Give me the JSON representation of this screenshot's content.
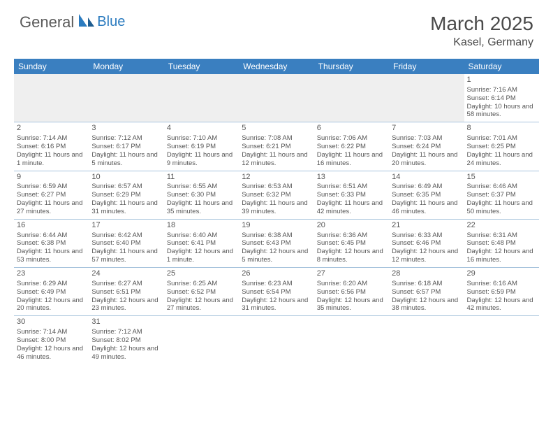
{
  "logo": {
    "text1": "General",
    "text2": "Blue"
  },
  "title": "March 2025",
  "location": "Kasel, Germany",
  "colors": {
    "header_bg": "#3a7fc0",
    "header_text": "#ffffff",
    "grid_line": "#a8c4dd",
    "blank_bg": "#efefef",
    "text": "#555555",
    "logo_gray": "#5a5a5a",
    "logo_blue": "#2b7bbf"
  },
  "dayHeaders": [
    "Sunday",
    "Monday",
    "Tuesday",
    "Wednesday",
    "Thursday",
    "Friday",
    "Saturday"
  ],
  "weeks": [
    [
      null,
      null,
      null,
      null,
      null,
      null,
      {
        "n": "1",
        "sr": "7:16 AM",
        "ss": "6:14 PM",
        "dl": "10 hours and 58 minutes."
      }
    ],
    [
      {
        "n": "2",
        "sr": "7:14 AM",
        "ss": "6:16 PM",
        "dl": "11 hours and 1 minute."
      },
      {
        "n": "3",
        "sr": "7:12 AM",
        "ss": "6:17 PM",
        "dl": "11 hours and 5 minutes."
      },
      {
        "n": "4",
        "sr": "7:10 AM",
        "ss": "6:19 PM",
        "dl": "11 hours and 9 minutes."
      },
      {
        "n": "5",
        "sr": "7:08 AM",
        "ss": "6:21 PM",
        "dl": "11 hours and 12 minutes."
      },
      {
        "n": "6",
        "sr": "7:06 AM",
        "ss": "6:22 PM",
        "dl": "11 hours and 16 minutes."
      },
      {
        "n": "7",
        "sr": "7:03 AM",
        "ss": "6:24 PM",
        "dl": "11 hours and 20 minutes."
      },
      {
        "n": "8",
        "sr": "7:01 AM",
        "ss": "6:25 PM",
        "dl": "11 hours and 24 minutes."
      }
    ],
    [
      {
        "n": "9",
        "sr": "6:59 AM",
        "ss": "6:27 PM",
        "dl": "11 hours and 27 minutes."
      },
      {
        "n": "10",
        "sr": "6:57 AM",
        "ss": "6:29 PM",
        "dl": "11 hours and 31 minutes."
      },
      {
        "n": "11",
        "sr": "6:55 AM",
        "ss": "6:30 PM",
        "dl": "11 hours and 35 minutes."
      },
      {
        "n": "12",
        "sr": "6:53 AM",
        "ss": "6:32 PM",
        "dl": "11 hours and 39 minutes."
      },
      {
        "n": "13",
        "sr": "6:51 AM",
        "ss": "6:33 PM",
        "dl": "11 hours and 42 minutes."
      },
      {
        "n": "14",
        "sr": "6:49 AM",
        "ss": "6:35 PM",
        "dl": "11 hours and 46 minutes."
      },
      {
        "n": "15",
        "sr": "6:46 AM",
        "ss": "6:37 PM",
        "dl": "11 hours and 50 minutes."
      }
    ],
    [
      {
        "n": "16",
        "sr": "6:44 AM",
        "ss": "6:38 PM",
        "dl": "11 hours and 53 minutes."
      },
      {
        "n": "17",
        "sr": "6:42 AM",
        "ss": "6:40 PM",
        "dl": "11 hours and 57 minutes."
      },
      {
        "n": "18",
        "sr": "6:40 AM",
        "ss": "6:41 PM",
        "dl": "12 hours and 1 minute."
      },
      {
        "n": "19",
        "sr": "6:38 AM",
        "ss": "6:43 PM",
        "dl": "12 hours and 5 minutes."
      },
      {
        "n": "20",
        "sr": "6:36 AM",
        "ss": "6:45 PM",
        "dl": "12 hours and 8 minutes."
      },
      {
        "n": "21",
        "sr": "6:33 AM",
        "ss": "6:46 PM",
        "dl": "12 hours and 12 minutes."
      },
      {
        "n": "22",
        "sr": "6:31 AM",
        "ss": "6:48 PM",
        "dl": "12 hours and 16 minutes."
      }
    ],
    [
      {
        "n": "23",
        "sr": "6:29 AM",
        "ss": "6:49 PM",
        "dl": "12 hours and 20 minutes."
      },
      {
        "n": "24",
        "sr": "6:27 AM",
        "ss": "6:51 PM",
        "dl": "12 hours and 23 minutes."
      },
      {
        "n": "25",
        "sr": "6:25 AM",
        "ss": "6:52 PM",
        "dl": "12 hours and 27 minutes."
      },
      {
        "n": "26",
        "sr": "6:23 AM",
        "ss": "6:54 PM",
        "dl": "12 hours and 31 minutes."
      },
      {
        "n": "27",
        "sr": "6:20 AM",
        "ss": "6:56 PM",
        "dl": "12 hours and 35 minutes."
      },
      {
        "n": "28",
        "sr": "6:18 AM",
        "ss": "6:57 PM",
        "dl": "12 hours and 38 minutes."
      },
      {
        "n": "29",
        "sr": "6:16 AM",
        "ss": "6:59 PM",
        "dl": "12 hours and 42 minutes."
      }
    ],
    [
      {
        "n": "30",
        "sr": "7:14 AM",
        "ss": "8:00 PM",
        "dl": "12 hours and 46 minutes."
      },
      {
        "n": "31",
        "sr": "7:12 AM",
        "ss": "8:02 PM",
        "dl": "12 hours and 49 minutes."
      },
      null,
      null,
      null,
      null,
      null
    ]
  ],
  "labels": {
    "sunrise": "Sunrise: ",
    "sunset": "Sunset: ",
    "daylight": "Daylight: "
  }
}
